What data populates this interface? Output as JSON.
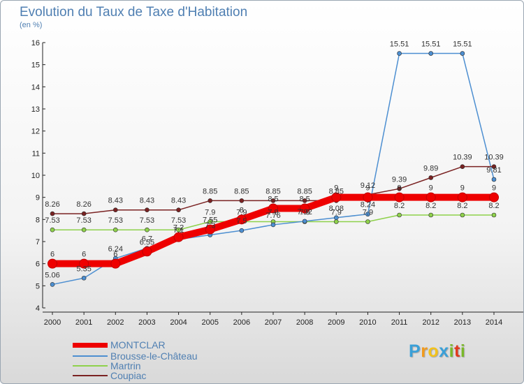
{
  "header": {
    "title": "Evolution du Taux de Taxe d'Habitation",
    "subtitle": "(en %)"
  },
  "brand": {
    "letters": [
      "P",
      "r",
      "o",
      "x",
      "i",
      "t",
      "i"
    ],
    "colors": [
      "#3aa0d8",
      "#f29a1c",
      "#f2c21c",
      "#3aa0d8",
      "#7ab829",
      "#e0391c",
      "#7ab829"
    ]
  },
  "chart_data": {
    "type": "line",
    "x": [
      "2000",
      "2001",
      "2002",
      "2003",
      "2004",
      "2005",
      "2006",
      "2007",
      "2008",
      "2009",
      "2010",
      "2011",
      "2012",
      "2013",
      "2014"
    ],
    "ylim": [
      4,
      16
    ],
    "yticks": [
      "4",
      "5",
      "6",
      "7",
      "8",
      "9",
      "10",
      "11",
      "12",
      "13",
      "14",
      "15",
      "16"
    ],
    "grid": false,
    "legend_position": "bottom-left",
    "series": [
      {
        "name": "MONTCLAR",
        "color": "#ee0000",
        "values": [
          6,
          6,
          6,
          6.55,
          7.2,
          7.55,
          8,
          8.5,
          8.5,
          9,
          9,
          9,
          9,
          9,
          9
        ],
        "labels": [
          "6",
          "6",
          "6",
          "6.55",
          "7.2",
          "7.55",
          "8",
          "8.5",
          "8.5",
          "9",
          "9",
          "9",
          "9",
          "9",
          "9"
        ]
      },
      {
        "name": "Brousse-le-Château",
        "color": "#4d8fd1",
        "values": [
          5.06,
          5.35,
          6.24,
          6.7,
          7.1,
          7.3,
          7.5,
          7.76,
          7.92,
          8.08,
          8.24,
          15.51,
          15.51,
          15.51,
          9.81
        ],
        "labels": [
          "5.06",
          "5.35",
          "6.24",
          "6.7",
          "7.1",
          "7.3",
          "7.5",
          "7.76",
          "7.92",
          "8.08",
          "8.24",
          "15.51",
          "15.51",
          "15.51",
          "9.81"
        ]
      },
      {
        "name": "Martrin",
        "color": "#8ed14b",
        "values": [
          7.53,
          7.53,
          7.53,
          7.53,
          7.53,
          7.9,
          7.9,
          7.9,
          7.9,
          7.9,
          7.9,
          8.2,
          8.2,
          8.2,
          8.2
        ],
        "labels": [
          "7.53",
          "7.53",
          "7.53",
          "7.53",
          "7.53",
          "7.9",
          "7.9",
          "7.9",
          "7.9",
          "7.9",
          "7.9",
          "8.2",
          "8.2",
          "8.2",
          "8.2"
        ]
      },
      {
        "name": "Coupiac",
        "color": "#7a2222",
        "values": [
          8.26,
          8.26,
          8.43,
          8.43,
          8.43,
          8.85,
          8.85,
          8.85,
          8.85,
          8.85,
          9.12,
          9.39,
          9.89,
          10.39,
          10.39
        ],
        "labels": [
          "8.26",
          "8.26",
          "8.43",
          "8.43",
          "8.43",
          "8.85",
          "8.85",
          "8.85",
          "8.85",
          "8.85",
          "9.12",
          "9.39",
          "9.89",
          "10.39",
          "10.39"
        ]
      }
    ]
  }
}
